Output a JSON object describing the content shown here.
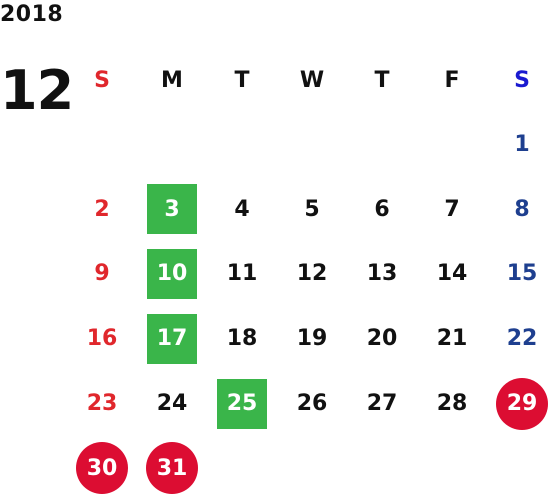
{
  "header": {
    "year": "2018",
    "month": "12"
  },
  "weekdays": [
    "S",
    "M",
    "T",
    "W",
    "T",
    "F",
    "S"
  ],
  "weeks": [
    [
      "",
      "",
      "",
      "",
      "",
      "",
      "1"
    ],
    [
      "2",
      "3",
      "4",
      "5",
      "6",
      "7",
      "8"
    ],
    [
      "9",
      "10",
      "11",
      "12",
      "13",
      "14",
      "15"
    ],
    [
      "16",
      "17",
      "18",
      "19",
      "20",
      "21",
      "22"
    ],
    [
      "23",
      "24",
      "25",
      "26",
      "27",
      "28",
      "29"
    ],
    [
      "30",
      "31",
      "",
      "",
      "",
      "",
      ""
    ]
  ],
  "highlights": {
    "green_days": [
      "3",
      "10",
      "17",
      "25"
    ],
    "red_days": [
      "29",
      "30",
      "31"
    ]
  },
  "colors": {
    "sunday": "#e0272c",
    "saturday": "#1e3f8f",
    "saturday_header": "#1a1ad0",
    "green_highlight": "#3ab54a",
    "red_highlight": "#dc0d32",
    "text": "#111111"
  }
}
